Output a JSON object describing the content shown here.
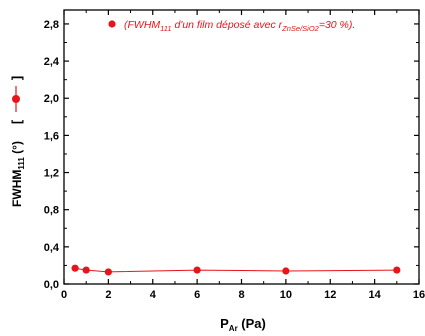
{
  "chart_data": {
    "type": "scatter",
    "x": [
      0.5,
      1,
      2,
      6,
      10,
      15
    ],
    "y": [
      0.17,
      0.15,
      0.13,
      0.15,
      0.14,
      0.15
    ],
    "xlim": [
      0,
      16
    ],
    "ylim": [
      0,
      2.95
    ],
    "x_ticks": [
      "0",
      "2",
      "4",
      "6",
      "8",
      "10",
      "12",
      "14",
      "16"
    ],
    "x_tick_values": [
      0,
      2,
      4,
      6,
      8,
      10,
      12,
      14,
      16
    ],
    "y_ticks": [
      "0,0",
      "0,4",
      "0,8",
      "1,2",
      "1,6",
      "2,0",
      "2,4",
      "2,8"
    ],
    "y_tick_values": [
      0,
      0.4,
      0.8,
      1.2,
      1.6,
      2.0,
      2.4,
      2.8
    ],
    "xlabel": {
      "main": "P",
      "sub": "Ar",
      "rest": " (Pa)"
    },
    "ylabel": {
      "main": "FWHM",
      "sub": "111",
      "rest": " (°)",
      "bracket_left": "[",
      "bracket_right": "]"
    },
    "legend": {
      "pre": "(FWHM",
      "sub1": "111",
      "mid": " d'un film déposé avec r",
      "sub2": "ZnSe/SiO2",
      "post": "=30 %)."
    },
    "series_color": "#e8141b",
    "legend_placement": "top-right",
    "grid": false
  }
}
